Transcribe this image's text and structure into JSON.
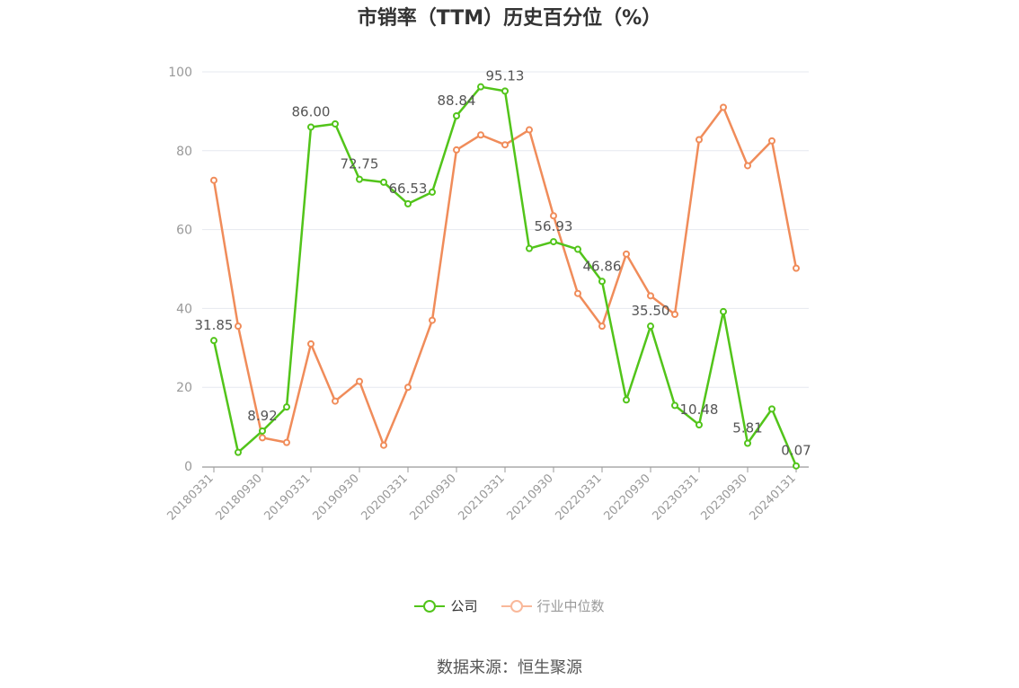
{
  "title": "市销率（TTM）历史百分位（%）",
  "source": "数据来源：恒生聚源",
  "chart_data": {
    "type": "line",
    "title": "市销率（TTM）历史百分位（%）",
    "ylim": [
      0,
      100
    ],
    "yticks": [
      0,
      20,
      40,
      60,
      80,
      100
    ],
    "grid": true,
    "legend_position": "bottom",
    "x": [
      "20180331",
      "20180630",
      "20180930",
      "20181231",
      "20190331",
      "20190630",
      "20190930",
      "20191231",
      "20200331",
      "20200630",
      "20200930",
      "20201231",
      "20210331",
      "20210630",
      "20210930",
      "20211231",
      "20220331",
      "20220630",
      "20220930",
      "20221230",
      "20230331",
      "20230630",
      "20230930",
      "20231229",
      "20240131"
    ],
    "xtick_labels": [
      "20180331",
      "20180930",
      "20190331",
      "20190930",
      "20200331",
      "20200930",
      "20210331",
      "20210930",
      "20220331",
      "20220930",
      "20230331",
      "20230930",
      "20240131"
    ],
    "series": [
      {
        "name": "公司",
        "color": "#52c41a",
        "values": [
          31.85,
          3.5,
          8.92,
          15.0,
          86.0,
          86.8,
          72.75,
          72.0,
          66.53,
          69.5,
          88.84,
          96.2,
          95.13,
          55.2,
          56.93,
          55.0,
          46.86,
          16.8,
          35.5,
          15.4,
          10.48,
          39.2,
          5.81,
          14.5,
          0.07
        ],
        "labels": [
          "31.85",
          "",
          "8.92",
          "",
          "86.00",
          "",
          "72.75",
          "",
          "66.53",
          "",
          "88.84",
          "",
          "95.13",
          "",
          "56.93",
          "",
          "46.86",
          "",
          "35.50",
          "",
          "10.48",
          "",
          "5.81",
          "",
          "0.07"
        ]
      },
      {
        "name": "行业中位数",
        "color": "#f08c5a",
        "values": [
          72.5,
          35.5,
          7.2,
          6.0,
          31.0,
          16.5,
          21.5,
          5.3,
          20.0,
          37.0,
          80.2,
          84.0,
          81.5,
          85.3,
          63.5,
          43.8,
          35.5,
          53.8,
          43.2,
          38.5,
          82.8,
          91.0,
          76.2,
          82.5,
          50.2
        ],
        "labels": []
      }
    ]
  },
  "legend": [
    {
      "name": "公司",
      "color": "#52c41a",
      "text_color": "#333333"
    },
    {
      "name": "行业中位数",
      "color": "#f9b89a",
      "text_color": "#999999"
    }
  ]
}
